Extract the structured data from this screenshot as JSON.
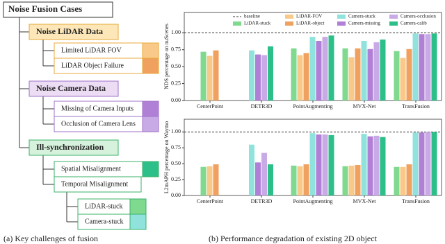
{
  "diagram": {
    "root": "Noise Fusion Cases",
    "groups": [
      {
        "label": "Noise LiDAR Data",
        "children": [
          {
            "label": "Limited LiDAR FOV"
          },
          {
            "label": "LiDAR Object Failure"
          }
        ]
      },
      {
        "label": "Noise Camera Data",
        "children": [
          {
            "label": "Missing of Camera Inputs"
          },
          {
            "label": "Occlusion of Camera Lens"
          }
        ]
      },
      {
        "label": "Ill-synchronization",
        "children": [
          {
            "label": "Spatial Misalignment"
          },
          {
            "label": "Temporal Misalignment",
            "children": [
              {
                "label": "LiDAR-stuck"
              },
              {
                "label": "Camera-stuck"
              }
            ]
          }
        ]
      }
    ],
    "caption": "(a) Key challenges of fusion"
  },
  "caption": "(b) Performance degradation of existing 2D object",
  "chart_data": [
    {
      "type": "bar",
      "ylabel": "NDS percentage on nuScenes",
      "categories": [
        "CenterPoint",
        "DETR3D",
        "PointAugmenting",
        "MVX-Net",
        "TransFusion"
      ],
      "baseline": {
        "name": "baseline",
        "value": 1
      },
      "series": [
        {
          "name": "LiDAR-stuck",
          "color": "#7fd98f",
          "values": [
            0.72,
            null,
            0.77,
            0.77,
            0.73
          ]
        },
        {
          "name": "LiDAR-FOV",
          "color": "#f9c98a",
          "values": [
            0.66,
            null,
            0.67,
            0.64,
            0.63
          ]
        },
        {
          "name": "LiDAR-object",
          "color": "#f0a15f",
          "values": [
            0.74,
            null,
            0.7,
            0.77,
            0.76
          ]
        },
        {
          "name": "Camera-stuck",
          "color": "#8fe3dc",
          "values": [
            null,
            0.74,
            0.94,
            0.88,
            0.99
          ]
        },
        {
          "name": "Camera-missing",
          "color": "#b07fd6",
          "values": [
            null,
            0.68,
            0.88,
            0.76,
            0.98
          ]
        },
        {
          "name": "Camera-occlusion",
          "color": "#c8aae6",
          "values": [
            null,
            0.67,
            0.94,
            0.86,
            0.98
          ]
        },
        {
          "name": "Camera-calib",
          "color": "#2dbf8a",
          "values": [
            null,
            0.8,
            0.96,
            0.9,
            0.99
          ]
        }
      ],
      "ylim": [
        0,
        1.3
      ],
      "yticks": [
        {
          "value": 0,
          "label": "0.00"
        },
        {
          "value": 0.25,
          "label": "0.25"
        },
        {
          "value": 0.5,
          "label": "0.50"
        },
        {
          "value": 0.75,
          "label": "0.75"
        },
        {
          "value": 1,
          "label": "1.00"
        }
      ],
      "legend": "upper center"
    },
    {
      "type": "bar",
      "ylabel": "L2mAPH percentage on Waymo",
      "categories": [
        "CenterPoint",
        "DETR3D",
        "PointAugmenting",
        "MVX-Net",
        "TransFusion"
      ],
      "baseline": {
        "value": 1
      },
      "series": [
        {
          "color": "#7fd98f",
          "values": [
            0.45,
            null,
            0.47,
            0.46,
            0.45
          ]
        },
        {
          "color": "#f9c98a",
          "values": [
            0.46,
            null,
            0.46,
            0.47,
            0.45
          ]
        },
        {
          "color": "#f0a15f",
          "values": [
            0.49,
            null,
            0.49,
            0.48,
            0.49
          ]
        },
        {
          "color": "#8fe3dc",
          "values": [
            null,
            0.8,
            0.98,
            0.97,
            0.99
          ]
        },
        {
          "color": "#b07fd6",
          "values": [
            null,
            0.52,
            0.96,
            0.93,
            0.99
          ]
        },
        {
          "color": "#c8aae6",
          "values": [
            null,
            0.67,
            0.96,
            0.94,
            1.0
          ]
        },
        {
          "color": "#2dbf8a",
          "values": [
            null,
            0.49,
            0.95,
            0.92,
            1.0
          ]
        }
      ],
      "ylim": [
        0,
        1.2
      ],
      "yticks": [
        {
          "value": 0,
          "label": "0.00"
        },
        {
          "value": 0.25,
          "label": "0.25"
        },
        {
          "value": 0.5,
          "label": "0.50"
        },
        {
          "value": 0.75,
          "label": "0.75"
        },
        {
          "value": 1,
          "label": "1.00"
        }
      ]
    }
  ]
}
